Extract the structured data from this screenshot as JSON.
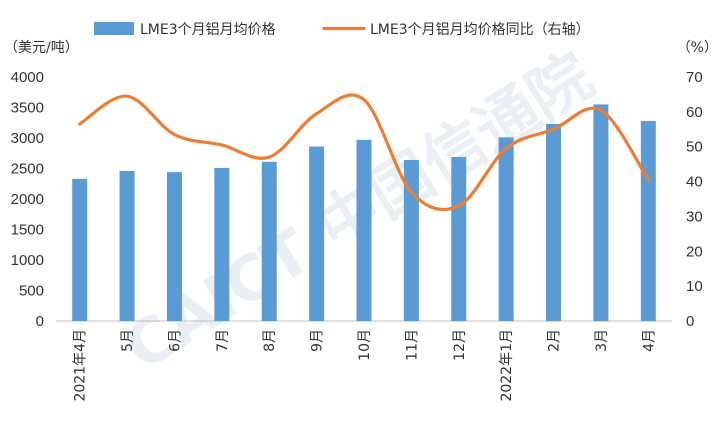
{
  "chart_data": {
    "type": "bar",
    "categories": [
      "2021年4月",
      "5月",
      "6月",
      "7月",
      "8月",
      "9月",
      "10月",
      "11月",
      "12月",
      "2022年1月",
      "2月",
      "3月",
      "4月"
    ],
    "series": [
      {
        "name": "LME3个月铝月均价格",
        "type": "bar",
        "axis": "left",
        "color": "#5b9bd5",
        "values": [
          2330,
          2460,
          2440,
          2510,
          2610,
          2860,
          2970,
          2640,
          2690,
          3010,
          3230,
          3550,
          3280
        ]
      },
      {
        "name": "LME3个月铝月均价格同比（右轴）",
        "type": "line",
        "axis": "right",
        "color": "#ed7d31",
        "values": [
          56.5,
          64.5,
          53.5,
          50.5,
          47,
          59.5,
          63.5,
          37,
          33,
          49.5,
          55,
          60.5,
          40.5
        ]
      }
    ],
    "y_left": {
      "unit": "（美元/吨）",
      "min": 0,
      "max": 4000,
      "ticks": [
        0,
        500,
        1000,
        1500,
        2000,
        2500,
        3000,
        3500,
        4000
      ]
    },
    "y_right": {
      "unit": "（%）",
      "min": 0,
      "max": 70,
      "ticks": [
        0,
        10,
        20,
        30,
        40,
        50,
        60,
        70
      ]
    },
    "legend_position": "top",
    "grid": false,
    "watermark": "CAICT 中国信通院"
  }
}
